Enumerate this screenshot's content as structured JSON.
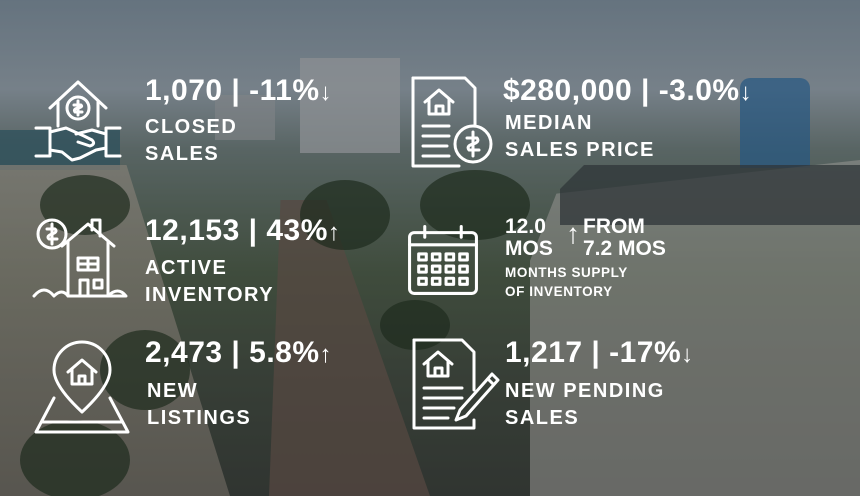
{
  "stats": {
    "closed_sales": {
      "value": "1,070 | -11%",
      "arrow": "↓",
      "label_line1": "CLOSED",
      "label_line2": "SALES",
      "icon": "hand-shake-house-dollar-icon"
    },
    "median_price": {
      "value": "$280,000 | -3.0%",
      "arrow": "↓",
      "label_line1": "MEDIAN",
      "label_line2": "SALES PRICE",
      "icon": "house-document-dollar-icon"
    },
    "active_inventory": {
      "value": "12,153 | 43%",
      "arrow": "↑",
      "label_line1": "ACTIVE",
      "label_line2": "INVENTORY",
      "icon": "house-dollar-tag-icon"
    },
    "months_supply": {
      "value_line1": "12.0",
      "value_line2": "MOS",
      "arrow": "↑",
      "from_line1": "FROM",
      "from_line2": "7.2 MOS",
      "label_line1": "MONTHS SUPPLY",
      "label_line2": "OF INVENTORY",
      "icon": "calendar-icon"
    },
    "new_listings": {
      "value": "2,473 | 5.8%",
      "arrow": "↑",
      "label_line1": "NEW",
      "label_line2": "LISTINGS",
      "icon": "map-pin-house-icon"
    },
    "new_pending": {
      "value": "1,217 | -17%",
      "arrow": "↓",
      "label_line1": "NEW PENDING",
      "label_line2": "SALES",
      "icon": "document-house-pen-icon"
    }
  }
}
